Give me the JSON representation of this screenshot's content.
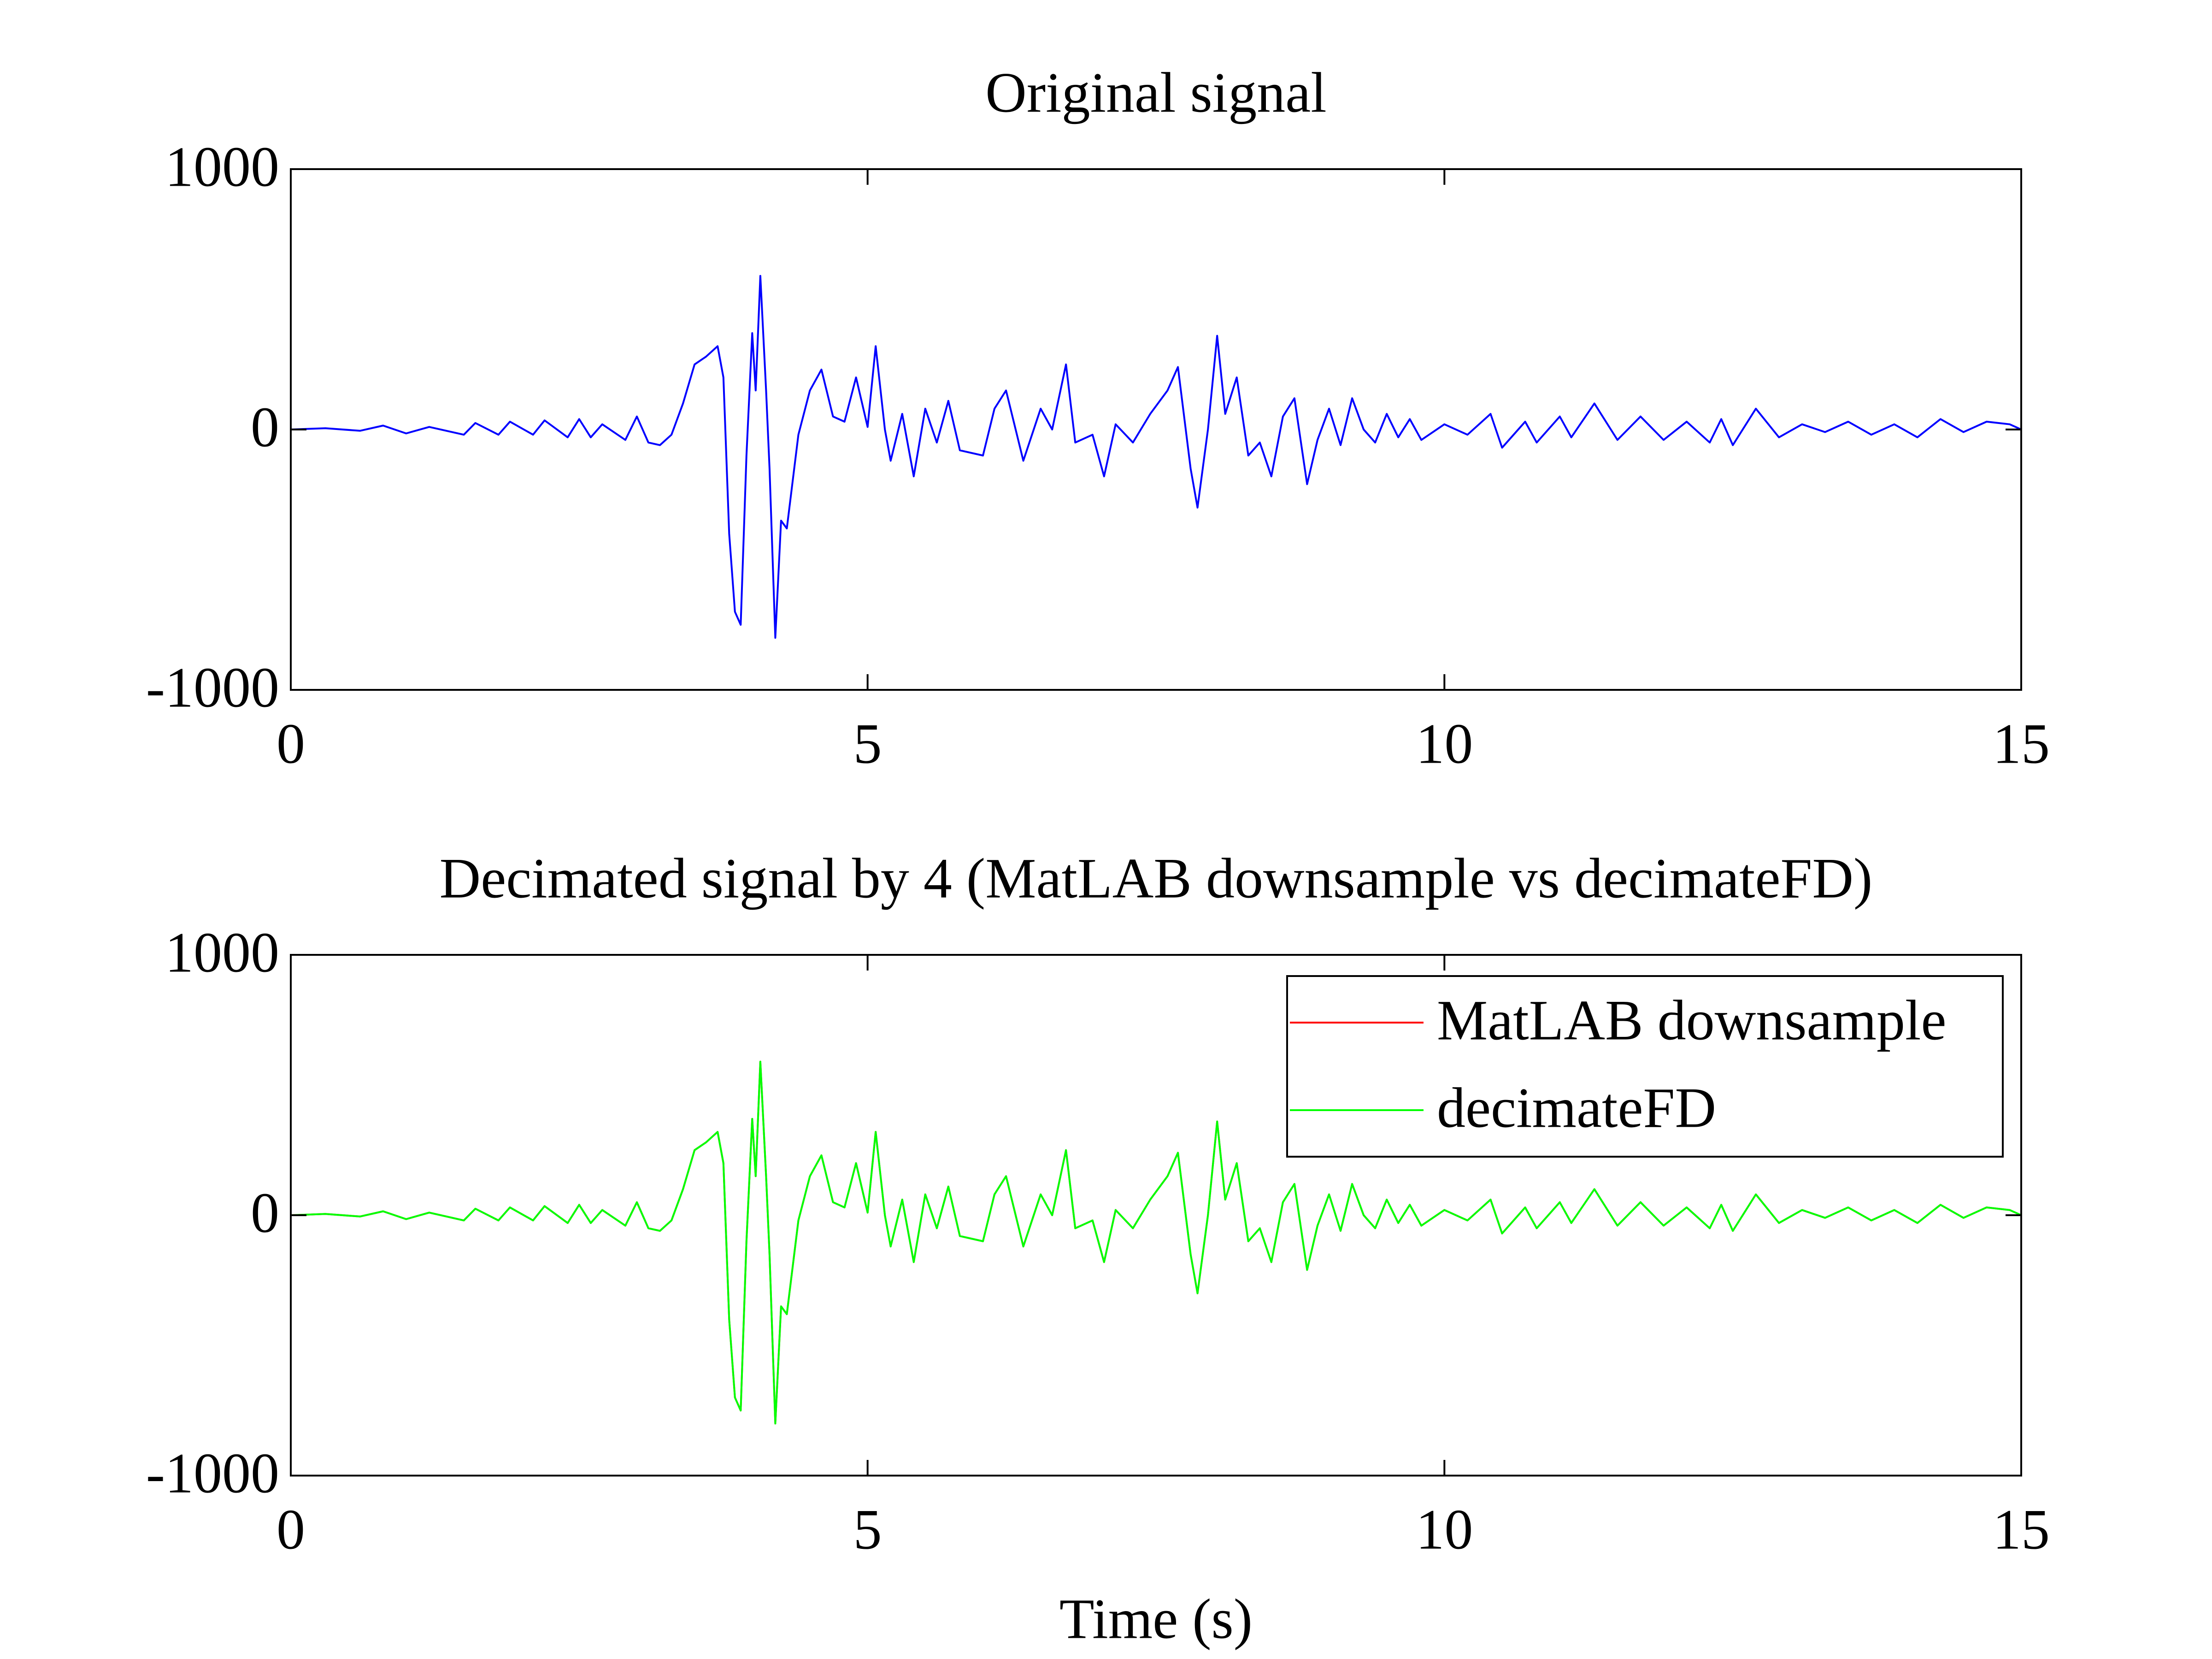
{
  "chart_data": [
    {
      "type": "line",
      "title": "Original signal",
      "x": [
        0,
        0.3,
        0.6,
        0.8,
        1.0,
        1.2,
        1.5,
        1.6,
        1.8,
        1.9,
        2.1,
        2.2,
        2.4,
        2.5,
        2.6,
        2.7,
        2.9,
        3.0,
        3.1,
        3.2,
        3.3,
        3.4,
        3.5,
        3.6,
        3.7,
        3.75,
        3.8,
        3.85,
        3.9,
        3.95,
        4.0,
        4.03,
        4.07,
        4.12,
        4.15,
        4.2,
        4.25,
        4.3,
        4.4,
        4.5,
        4.6,
        4.7,
        4.8,
        4.9,
        5.0,
        5.07,
        5.15,
        5.2,
        5.3,
        5.4,
        5.5,
        5.6,
        5.7,
        5.8,
        6.0,
        6.1,
        6.2,
        6.35,
        6.5,
        6.6,
        6.72,
        6.8,
        6.95,
        7.05,
        7.15,
        7.3,
        7.45,
        7.6,
        7.69,
        7.8,
        7.86,
        7.95,
        8.03,
        8.1,
        8.2,
        8.3,
        8.4,
        8.5,
        8.6,
        8.7,
        8.81,
        8.9,
        9.0,
        9.1,
        9.2,
        9.3,
        9.4,
        9.5,
        9.6,
        9.7,
        9.8,
        10.0,
        10.2,
        10.4,
        10.5,
        10.7,
        10.8,
        11.0,
        11.1,
        11.3,
        11.5,
        11.7,
        11.9,
        12.1,
        12.3,
        12.4,
        12.5,
        12.7,
        12.9,
        13.1,
        13.3,
        13.5,
        13.7,
        13.9,
        14.1,
        14.3,
        14.5,
        14.7,
        14.9,
        15.0
      ],
      "series": [
        {
          "color": "#0000ff",
          "values": [
            0,
            5,
            -5,
            15,
            -15,
            10,
            -20,
            25,
            -20,
            30,
            -20,
            35,
            -30,
            40,
            -30,
            20,
            -40,
            50,
            -50,
            -60,
            -20,
            100,
            250,
            280,
            320,
            200,
            -400,
            -700,
            -750,
            -100,
            370,
            150,
            590,
            150,
            -150,
            -800,
            -350,
            -380,
            -20,
            150,
            230,
            50,
            30,
            200,
            10,
            320,
            0,
            -120,
            60,
            -180,
            80,
            -50,
            110,
            -80,
            -100,
            80,
            150,
            -120,
            80,
            0,
            250,
            -50,
            -20,
            -180,
            20,
            -50,
            60,
            150,
            240,
            -150,
            -300,
            0,
            360,
            60,
            200,
            -100,
            -50,
            -180,
            50,
            120,
            -210,
            -40,
            80,
            -60,
            120,
            0,
            -50,
            60,
            -30,
            40,
            -40,
            20,
            -20,
            60,
            -70,
            30,
            -50,
            50,
            -30,
            100,
            -40,
            50,
            -40,
            30,
            -50,
            40,
            -60,
            80,
            -30,
            20,
            -10,
            30,
            -20,
            20,
            -30,
            40,
            -10,
            30,
            20,
            0
          ]
        }
      ],
      "xlim": [
        0,
        15
      ],
      "xticks": [
        0,
        5,
        10,
        15
      ],
      "ylim": [
        -1000,
        1000
      ],
      "yticks": [
        -1000,
        0,
        1000
      ]
    },
    {
      "type": "line",
      "title": "Decimated signal by 4 (MatLAB downsample vs decimateFD)",
      "xlabel": "Time (s)",
      "x": [
        0,
        0.3,
        0.6,
        0.8,
        1.0,
        1.2,
        1.5,
        1.6,
        1.8,
        1.9,
        2.1,
        2.2,
        2.4,
        2.5,
        2.6,
        2.7,
        2.9,
        3.0,
        3.1,
        3.2,
        3.3,
        3.4,
        3.5,
        3.6,
        3.7,
        3.75,
        3.8,
        3.85,
        3.9,
        3.95,
        4.0,
        4.03,
        4.07,
        4.12,
        4.15,
        4.2,
        4.25,
        4.3,
        4.4,
        4.5,
        4.6,
        4.7,
        4.8,
        4.9,
        5.0,
        5.07,
        5.15,
        5.2,
        5.3,
        5.4,
        5.5,
        5.6,
        5.7,
        5.8,
        6.0,
        6.1,
        6.2,
        6.35,
        6.5,
        6.6,
        6.72,
        6.8,
        6.95,
        7.05,
        7.15,
        7.3,
        7.45,
        7.6,
        7.69,
        7.8,
        7.86,
        7.95,
        8.03,
        8.1,
        8.2,
        8.3,
        8.4,
        8.5,
        8.6,
        8.7,
        8.81,
        8.9,
        9.0,
        9.1,
        9.2,
        9.3,
        9.4,
        9.5,
        9.6,
        9.7,
        9.8,
        10.0,
        10.2,
        10.4,
        10.5,
        10.7,
        10.8,
        11.0,
        11.1,
        11.3,
        11.5,
        11.7,
        11.9,
        12.1,
        12.3,
        12.4,
        12.5,
        12.7,
        12.9,
        13.1,
        13.3,
        13.5,
        13.7,
        13.9,
        14.1,
        14.3,
        14.5,
        14.7,
        14.9,
        15.0
      ],
      "series": [
        {
          "name": "MatLAB downsample",
          "color": "#ff0000",
          "values": [
            0,
            5,
            -5,
            15,
            -15,
            10,
            -20,
            25,
            -20,
            30,
            -20,
            35,
            -30,
            40,
            -30,
            20,
            -40,
            50,
            -50,
            -60,
            -20,
            100,
            250,
            280,
            320,
            200,
            -400,
            -700,
            -750,
            -100,
            370,
            150,
            590,
            150,
            -150,
            -800,
            -350,
            -380,
            -20,
            150,
            230,
            50,
            30,
            200,
            10,
            320,
            0,
            -120,
            60,
            -180,
            80,
            -50,
            110,
            -80,
            -100,
            80,
            150,
            -120,
            80,
            0,
            250,
            -50,
            -20,
            -180,
            20,
            -50,
            60,
            150,
            240,
            -150,
            -300,
            0,
            360,
            60,
            200,
            -100,
            -50,
            -180,
            50,
            120,
            -210,
            -40,
            80,
            -60,
            120,
            0,
            -50,
            60,
            -30,
            40,
            -40,
            20,
            -20,
            60,
            -70,
            30,
            -50,
            50,
            -30,
            100,
            -40,
            50,
            -40,
            30,
            -50,
            40,
            -60,
            80,
            -30,
            20,
            -10,
            30,
            -20,
            20,
            -30,
            40,
            -10,
            30,
            20,
            0
          ]
        },
        {
          "name": "decimateFD",
          "color": "#00ff00",
          "values": [
            0,
            5,
            -5,
            15,
            -15,
            10,
            -20,
            25,
            -20,
            30,
            -20,
            35,
            -30,
            40,
            -30,
            20,
            -40,
            50,
            -50,
            -60,
            -20,
            100,
            250,
            280,
            320,
            200,
            -400,
            -700,
            -750,
            -100,
            370,
            150,
            590,
            150,
            -150,
            -800,
            -350,
            -380,
            -20,
            150,
            230,
            50,
            30,
            200,
            10,
            320,
            0,
            -120,
            60,
            -180,
            80,
            -50,
            110,
            -80,
            -100,
            80,
            150,
            -120,
            80,
            0,
            250,
            -50,
            -20,
            -180,
            20,
            -50,
            60,
            150,
            240,
            -150,
            -300,
            0,
            360,
            60,
            200,
            -100,
            -50,
            -180,
            50,
            120,
            -210,
            -40,
            80,
            -60,
            120,
            0,
            -50,
            60,
            -30,
            40,
            -40,
            20,
            -20,
            60,
            -70,
            30,
            -50,
            50,
            -30,
            100,
            -40,
            50,
            -40,
            30,
            -50,
            40,
            -60,
            80,
            -30,
            20,
            -10,
            30,
            -20,
            20,
            -30,
            40,
            -10,
            30,
            20,
            0
          ]
        }
      ],
      "xlim": [
        0,
        15
      ],
      "xticks": [
        0,
        5,
        10,
        15
      ],
      "ylim": [
        -1000,
        1000
      ],
      "yticks": [
        -1000,
        0,
        1000
      ],
      "legend": "upper right"
    }
  ]
}
